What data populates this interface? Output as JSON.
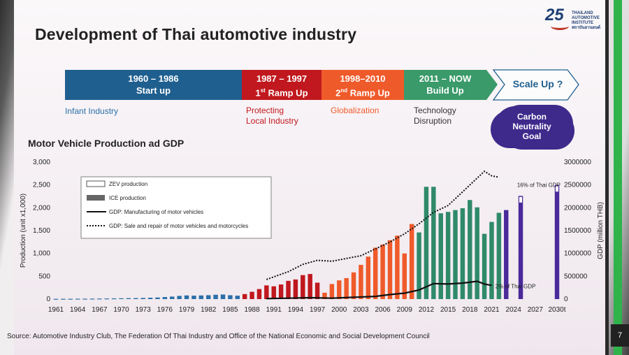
{
  "slide": {
    "title": "Development of Thai automotive industry",
    "logo": {
      "number": "25",
      "line1": "THAILAND",
      "line2": "AUTOMOTIVE",
      "line3": "INSTITUTE",
      "line4": "สถาบันยานยนต์"
    },
    "page_number": "7",
    "source": "Source: Automotive Industry Club, The Federation Of Thai Industry and Office of the National Economic and Social Development Council"
  },
  "timeline": [
    {
      "line1": "1960 – 1986",
      "line2": "Start up",
      "color": "#1f5f8f",
      "sub": [
        "Infant Industry"
      ],
      "sub_color": "#2a6fa8"
    },
    {
      "line1": "1987 – 1997",
      "line2_pre": "1",
      "line2_sup": "st",
      "line2_post": " Ramp Up",
      "color": "#c0181e",
      "sub": [
        "Protecting",
        "Local Industry"
      ],
      "sub_color": "#c0181e"
    },
    {
      "line1": "1998–2010",
      "line2_pre": "2",
      "line2_sup": "nd",
      "line2_post": " Ramp Up",
      "color": "#ef5a2a",
      "sub": [
        "Globalization"
      ],
      "sub_color": "#ef5a2a"
    },
    {
      "line1": "2011 – NOW",
      "line2": "Build Up",
      "color": "#3a9a6a",
      "sub": [
        "Technology",
        "Disruption"
      ],
      "sub_color": "#333333"
    },
    {
      "line1": "Scale Up ?",
      "color": "#ffffff",
      "text_color": "#1f5f8f"
    }
  ],
  "cloud": {
    "lines": [
      "Carbon",
      "Neutrality",
      "Goal"
    ]
  },
  "chart_data": {
    "type": "bar",
    "title": "Motor Vehicle Production ad GDP",
    "ylabel": "Production (unit x1,000)",
    "y2label": "GDP (million THB)",
    "ylim": [
      0,
      3000
    ],
    "y2lim": [
      0,
      3000000
    ],
    "yticks": [
      "0",
      "500",
      "1,000",
      "1,500",
      "2,000",
      "2,500",
      "3,000"
    ],
    "y2ticks": [
      "0",
      "500000",
      "1000000",
      "1500000",
      "2000000",
      "2500000",
      "3000000"
    ],
    "xtick_labels": [
      "1961",
      "1964",
      "1967",
      "1970",
      "1973",
      "1976",
      "1979",
      "1982",
      "1985",
      "1988",
      "1991",
      "1994",
      "1997",
      "2000",
      "2003",
      "2006",
      "2009",
      "2012",
      "2015",
      "2018",
      "2021",
      "2024",
      "2027",
      "2030t"
    ],
    "x_range": [
      1961,
      2030
    ],
    "legend": [
      {
        "label": "ZEV production",
        "kind": "zev"
      },
      {
        "label": "ICE production",
        "kind": "ice"
      },
      {
        "label": "GDP: Manufacturing of motor vehicles",
        "kind": "solid"
      },
      {
        "label": "GDP:  Sale and repair of motor vehicles and motorcycles",
        "kind": "dotted"
      }
    ],
    "annotations": [
      {
        "text": "16% of Thai GDP",
        "x": 2024.5,
        "y2": 2500000
      },
      {
        "text": "2% of Thai GDP",
        "x": 2021.5,
        "y2": 280000
      }
    ],
    "ice_production": [
      {
        "year": 1961,
        "value": 5
      },
      {
        "year": 1962,
        "value": 6
      },
      {
        "year": 1963,
        "value": 7
      },
      {
        "year": 1964,
        "value": 8
      },
      {
        "year": 1965,
        "value": 9
      },
      {
        "year": 1966,
        "value": 10
      },
      {
        "year": 1967,
        "value": 12
      },
      {
        "year": 1968,
        "value": 14
      },
      {
        "year": 1969,
        "value": 16
      },
      {
        "year": 1970,
        "value": 18
      },
      {
        "year": 1971,
        "value": 20
      },
      {
        "year": 1972,
        "value": 22
      },
      {
        "year": 1973,
        "value": 25
      },
      {
        "year": 1974,
        "value": 30
      },
      {
        "year": 1975,
        "value": 35
      },
      {
        "year": 1976,
        "value": 45
      },
      {
        "year": 1977,
        "value": 55
      },
      {
        "year": 1978,
        "value": 70
      },
      {
        "year": 1979,
        "value": 80
      },
      {
        "year": 1980,
        "value": 75
      },
      {
        "year": 1981,
        "value": 80
      },
      {
        "year": 1982,
        "value": 85
      },
      {
        "year": 1983,
        "value": 95
      },
      {
        "year": 1984,
        "value": 100
      },
      {
        "year": 1985,
        "value": 85
      },
      {
        "year": 1986,
        "value": 75
      },
      {
        "year": 1987,
        "value": 110
      },
      {
        "year": 1988,
        "value": 160
      },
      {
        "year": 1989,
        "value": 220
      },
      {
        "year": 1990,
        "value": 300
      },
      {
        "year": 1991,
        "value": 280
      },
      {
        "year": 1992,
        "value": 320
      },
      {
        "year": 1993,
        "value": 400
      },
      {
        "year": 1994,
        "value": 430
      },
      {
        "year": 1995,
        "value": 525
      },
      {
        "year": 1996,
        "value": 550
      },
      {
        "year": 1997,
        "value": 360
      },
      {
        "year": 1998,
        "value": 140
      },
      {
        "year": 1999,
        "value": 330
      },
      {
        "year": 2000,
        "value": 410
      },
      {
        "year": 2001,
        "value": 460
      },
      {
        "year": 2002,
        "value": 585
      },
      {
        "year": 2003,
        "value": 750
      },
      {
        "year": 2004,
        "value": 930
      },
      {
        "year": 2005,
        "value": 1125
      },
      {
        "year": 2006,
        "value": 1195
      },
      {
        "year": 2007,
        "value": 1290
      },
      {
        "year": 2008,
        "value": 1390
      },
      {
        "year": 2009,
        "value": 1000
      },
      {
        "year": 2010,
        "value": 1645
      },
      {
        "year": 2011,
        "value": 1460
      },
      {
        "year": 2012,
        "value": 2460
      },
      {
        "year": 2013,
        "value": 2460
      },
      {
        "year": 2014,
        "value": 1880
      },
      {
        "year": 2015,
        "value": 1910
      },
      {
        "year": 2016,
        "value": 1950
      },
      {
        "year": 2017,
        "value": 1990
      },
      {
        "year": 2018,
        "value": 2170
      },
      {
        "year": 2019,
        "value": 2010
      },
      {
        "year": 2020,
        "value": 1430
      },
      {
        "year": 2021,
        "value": 1690
      },
      {
        "year": 2022,
        "value": 1890
      },
      {
        "year": 2023,
        "value": 1950
      }
    ],
    "zev_production": [
      {
        "year": 2025,
        "value": 2260
      },
      {
        "year": 2030,
        "value": 2500
      }
    ],
    "gdp_manufacturing": [
      {
        "year": 1990,
        "value": 10000
      },
      {
        "year": 1993,
        "value": 20000
      },
      {
        "year": 1996,
        "value": 30000
      },
      {
        "year": 1999,
        "value": 20000
      },
      {
        "year": 2002,
        "value": 40000
      },
      {
        "year": 2005,
        "value": 60000
      },
      {
        "year": 2007,
        "value": 100000
      },
      {
        "year": 2009,
        "value": 130000
      },
      {
        "year": 2011,
        "value": 200000
      },
      {
        "year": 2013,
        "value": 340000
      },
      {
        "year": 2015,
        "value": 330000
      },
      {
        "year": 2017,
        "value": 350000
      },
      {
        "year": 2019,
        "value": 390000
      },
      {
        "year": 2020,
        "value": 330000
      },
      {
        "year": 2021,
        "value": 300000
      }
    ],
    "gdp_sale_repair": [
      {
        "year": 1990,
        "value": 430000
      },
      {
        "year": 1993,
        "value": 600000
      },
      {
        "year": 1995,
        "value": 760000
      },
      {
        "year": 1997,
        "value": 850000
      },
      {
        "year": 1999,
        "value": 830000
      },
      {
        "year": 2001,
        "value": 890000
      },
      {
        "year": 2003,
        "value": 950000
      },
      {
        "year": 2005,
        "value": 1100000
      },
      {
        "year": 2007,
        "value": 1250000
      },
      {
        "year": 2009,
        "value": 1430000
      },
      {
        "year": 2011,
        "value": 1650000
      },
      {
        "year": 2013,
        "value": 1900000
      },
      {
        "year": 2015,
        "value": 2050000
      },
      {
        "year": 2017,
        "value": 2350000
      },
      {
        "year": 2019,
        "value": 2650000
      },
      {
        "year": 2020,
        "value": 2800000
      },
      {
        "year": 2021,
        "value": 2700000
      },
      {
        "year": 2022,
        "value": 2670000
      }
    ]
  }
}
